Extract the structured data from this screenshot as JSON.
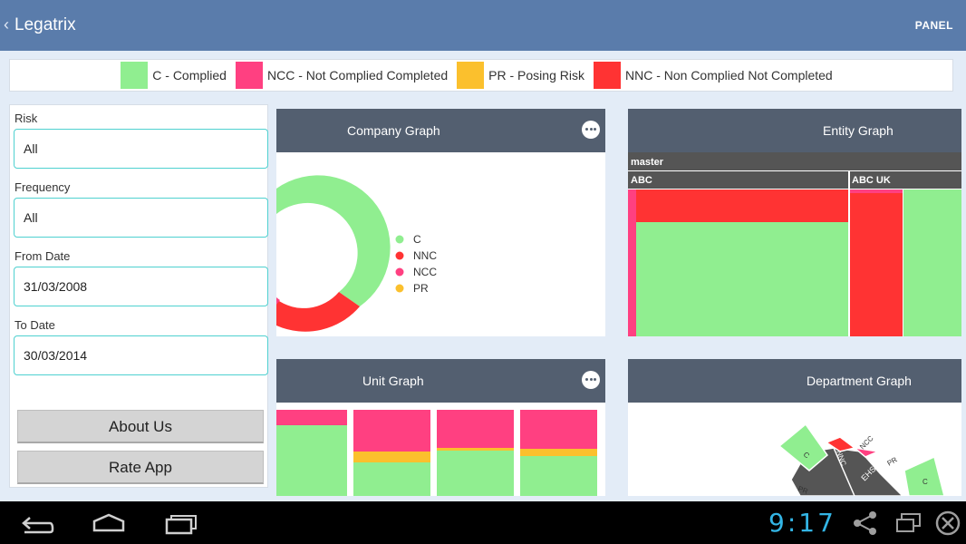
{
  "app": {
    "title": "Legatrix",
    "panel_label": "PANEL"
  },
  "legend": [
    {
      "label": "C - Complied",
      "color": "#90ee90"
    },
    {
      "label": "NCC - Not Complied Completed",
      "color": "#ff4081"
    },
    {
      "label": "PR - Posing Risk",
      "color": "#fbc02d"
    },
    {
      "label": "NNC - Non Complied Not Completed",
      "color": "#ff3333"
    }
  ],
  "filters": {
    "risk_label": "Risk",
    "risk_value": "All",
    "frequency_label": "Frequency",
    "frequency_value": "All",
    "from_date_label": "From Date",
    "from_date_value": "31/03/2008",
    "to_date_label": "To Date",
    "to_date_value": "30/03/2014",
    "about_label": "About Us",
    "rate_label": "Rate App"
  },
  "company_graph": {
    "title": "Company Graph",
    "legend": [
      "C",
      "NNC",
      "NCC",
      "PR"
    ],
    "colors": [
      "#90ee90",
      "#ff3333",
      "#ff4081",
      "#fbc02d"
    ]
  },
  "entity_graph": {
    "title": "Entity Graph",
    "root": "master",
    "groups": [
      "ABC",
      "ABC UK"
    ]
  },
  "unit_graph": {
    "title": "Unit Graph"
  },
  "department_graph": {
    "title": "Department Graph",
    "labels": [
      "C",
      "NNC",
      "NCC",
      "PR",
      "EHS",
      "PR",
      "C"
    ]
  },
  "system_bar": {
    "time": "9:17"
  }
}
